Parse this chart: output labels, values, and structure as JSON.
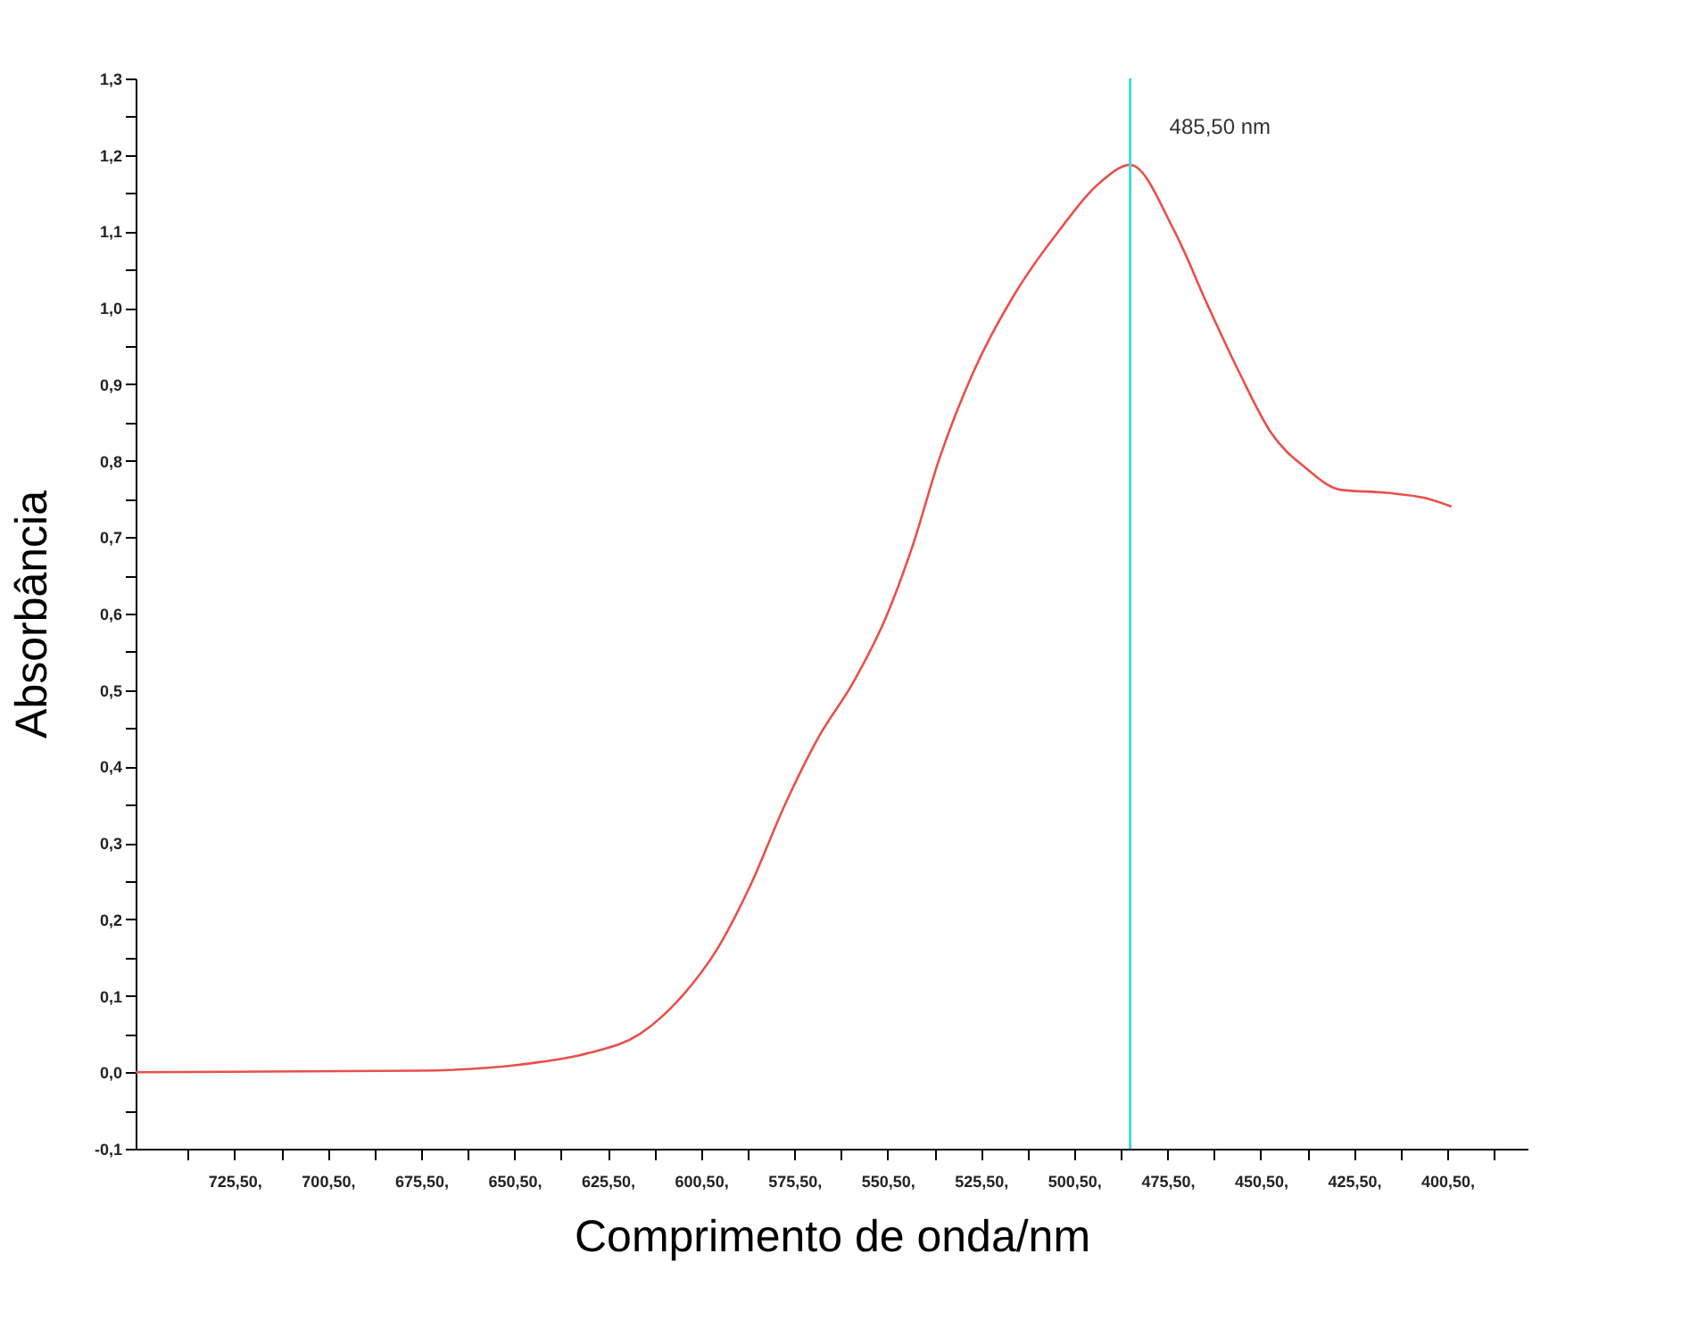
{
  "chart_data": {
    "type": "line",
    "xlabel": "Comprimento de onda/nm",
    "ylabel": "Absorbância",
    "x": [
      752,
      676.4,
      649,
      630.7,
      616.9,
      605.5,
      596.3,
      587.2,
      578,
      568.8,
      559.7,
      550.5,
      543.7,
      536.8,
      527.6,
      516.2,
      504.7,
      493.3,
      485.5,
      473.6,
      464.4,
      456.7,
      447.5,
      438.3,
      429.2,
      416.8,
      406.3,
      399.4
    ],
    "series": [
      {
        "color": "#e8504a",
        "values": [
          0.0,
          0.002,
          0.01,
          0.025,
          0.05,
          0.1,
          0.16,
          0.245,
          0.35,
          0.44,
          0.51,
          0.6,
          0.69,
          0.8,
          0.915,
          1.02,
          1.1,
          1.165,
          1.187,
          1.1,
          1.0,
          0.92,
          0.835,
          0.79,
          0.762,
          0.758,
          0.751,
          0.74
        ]
      }
    ],
    "xlim": [
      752,
      379
    ],
    "xticks": [
      {
        "value": 738,
        "label": null
      },
      {
        "value": 725.5,
        "label": "725,50,"
      },
      {
        "value": 713,
        "label": null
      },
      {
        "value": 700.5,
        "label": "700,50,"
      },
      {
        "value": 688,
        "label": null
      },
      {
        "value": 675.5,
        "label": "675,50,"
      },
      {
        "value": 663,
        "label": null
      },
      {
        "value": 650.5,
        "label": "650,50,"
      },
      {
        "value": 638,
        "label": null
      },
      {
        "value": 625.5,
        "label": "625,50,"
      },
      {
        "value": 613,
        "label": null
      },
      {
        "value": 600.5,
        "label": "600,50,"
      },
      {
        "value": 588,
        "label": null
      },
      {
        "value": 575.5,
        "label": "575,50,"
      },
      {
        "value": 563,
        "label": null
      },
      {
        "value": 550.5,
        "label": "550,50,"
      },
      {
        "value": 538,
        "label": null
      },
      {
        "value": 525.5,
        "label": "525,50,"
      },
      {
        "value": 513,
        "label": null
      },
      {
        "value": 500.5,
        "label": "500,50,"
      },
      {
        "value": 488,
        "label": null
      },
      {
        "value": 475.5,
        "label": "475,50,"
      },
      {
        "value": 463,
        "label": null
      },
      {
        "value": 450.5,
        "label": "450,50,"
      },
      {
        "value": 438,
        "label": null
      },
      {
        "value": 425.5,
        "label": "425,50,"
      },
      {
        "value": 413,
        "label": null
      },
      {
        "value": 400.5,
        "label": "400,50,"
      },
      {
        "value": 388,
        "label": null
      }
    ],
    "ylim": [
      -0.1,
      1.3
    ],
    "yticks": [
      {
        "value": -0.1,
        "label": "-0,1"
      },
      {
        "value": -0.05,
        "label": null
      },
      {
        "value": 0,
        "label": "0,0"
      },
      {
        "value": 0.05,
        "label": null
      },
      {
        "value": 0.1,
        "label": "0,1"
      },
      {
        "value": 0.15,
        "label": null
      },
      {
        "value": 0.2,
        "label": "0,2"
      },
      {
        "value": 0.25,
        "label": null
      },
      {
        "value": 0.3,
        "label": "0,3"
      },
      {
        "value": 0.35,
        "label": null
      },
      {
        "value": 0.4,
        "label": "0,4"
      },
      {
        "value": 0.45,
        "label": null
      },
      {
        "value": 0.5,
        "label": "0,5"
      },
      {
        "value": 0.55,
        "label": null
      },
      {
        "value": 0.6,
        "label": "0,6"
      },
      {
        "value": 0.65,
        "label": null
      },
      {
        "value": 0.7,
        "label": "0,7"
      },
      {
        "value": 0.75,
        "label": null
      },
      {
        "value": 0.8,
        "label": "0,8"
      },
      {
        "value": 0.85,
        "label": null
      },
      {
        "value": 0.9,
        "label": "0,9"
      },
      {
        "value": 0.95,
        "label": null
      },
      {
        "value": 1.0,
        "label": "1,0"
      },
      {
        "value": 1.05,
        "label": null
      },
      {
        "value": 1.1,
        "label": "1,1"
      },
      {
        "value": 1.15,
        "label": null
      },
      {
        "value": 1.2,
        "label": "1,2"
      },
      {
        "value": 1.25,
        "label": null
      },
      {
        "value": 1.3,
        "label": "1,3"
      }
    ],
    "ref_lines": [
      {
        "axis": "x",
        "value": 485.5,
        "label": "485,50 nm",
        "color": "#40d8e8"
      }
    ],
    "grid": false,
    "marker": "none",
    "line_style": "solid"
  }
}
